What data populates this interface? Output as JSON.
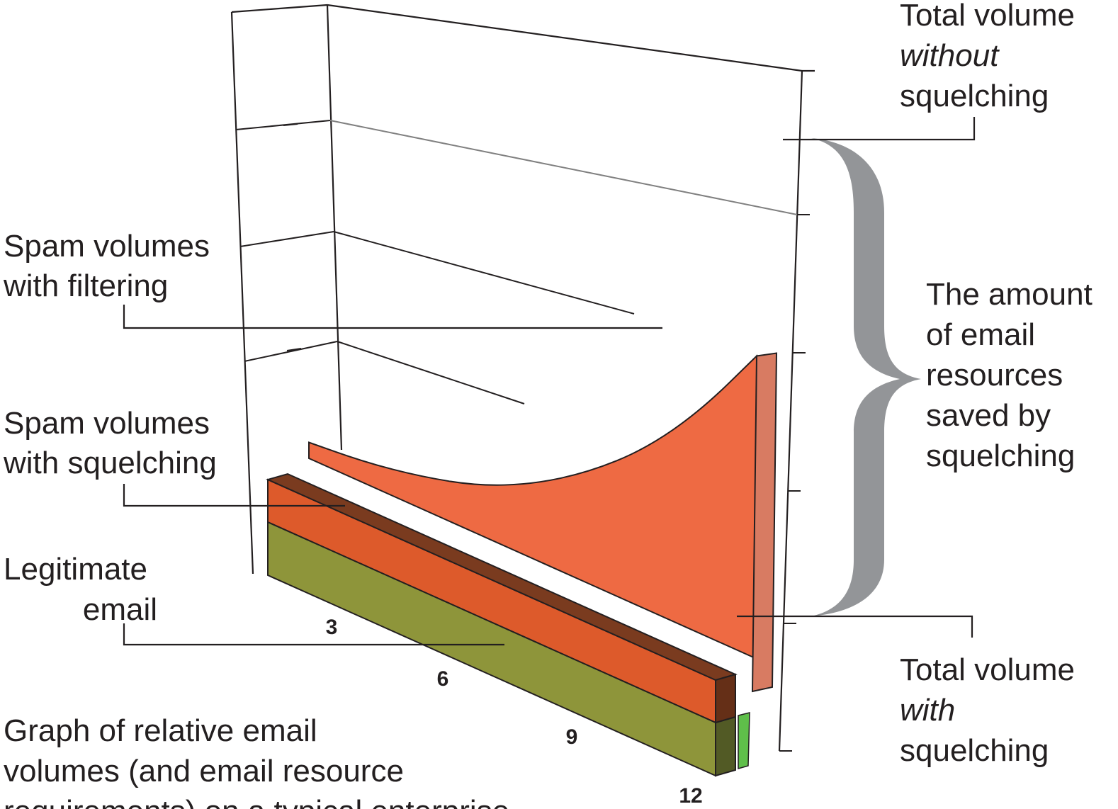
{
  "chart_data": {
    "type": "area",
    "x": [
      0,
      1.5,
      3,
      4.5,
      6,
      7.5,
      9,
      10.5,
      12
    ],
    "xticks": [
      "3",
      "6",
      "9",
      "12"
    ],
    "series": [
      {
        "name": "Legitimate email",
        "values": [
          1,
          1,
          1,
          1,
          1,
          1,
          1,
          1,
          1
        ],
        "color": "#8e953a"
      },
      {
        "name": "Spam volumes with squelching",
        "values": [
          0.8,
          0.8,
          0.8,
          0.8,
          0.8,
          0.8,
          0.8,
          0.8,
          0.8
        ],
        "color": "#dd5a2b"
      },
      {
        "name": "Spam volumes with filtering",
        "values": [
          0.3,
          0.4,
          0.6,
          0.9,
          1.4,
          2.1,
          3.0,
          4.2,
          5.7
        ],
        "color": "#ee6a43"
      }
    ],
    "ylim": [
      0,
      7
    ],
    "grid": true,
    "annotations": {
      "total_without": {
        "line1": "Total volume",
        "line2": "without",
        "line3": "squelching"
      },
      "total_with": {
        "line1": "Total volume",
        "line2": "with",
        "line3": "squelching"
      },
      "saved": {
        "line1": "The amount",
        "line2": "of email",
        "line3": "resources",
        "line4": "saved by",
        "line5": "squelching"
      },
      "spam_filtering": {
        "line1": "Spam volumes",
        "line2": "with filtering"
      },
      "spam_squelching": {
        "line1": "Spam volumes",
        "line2": "with squelching"
      },
      "legit": {
        "line1": "Legitimate",
        "line2": "email"
      },
      "caption": {
        "line1": "Graph of relative email",
        "line2": "volumes (and email resource",
        "line3": "requirements) on a typical enterprise"
      }
    }
  }
}
